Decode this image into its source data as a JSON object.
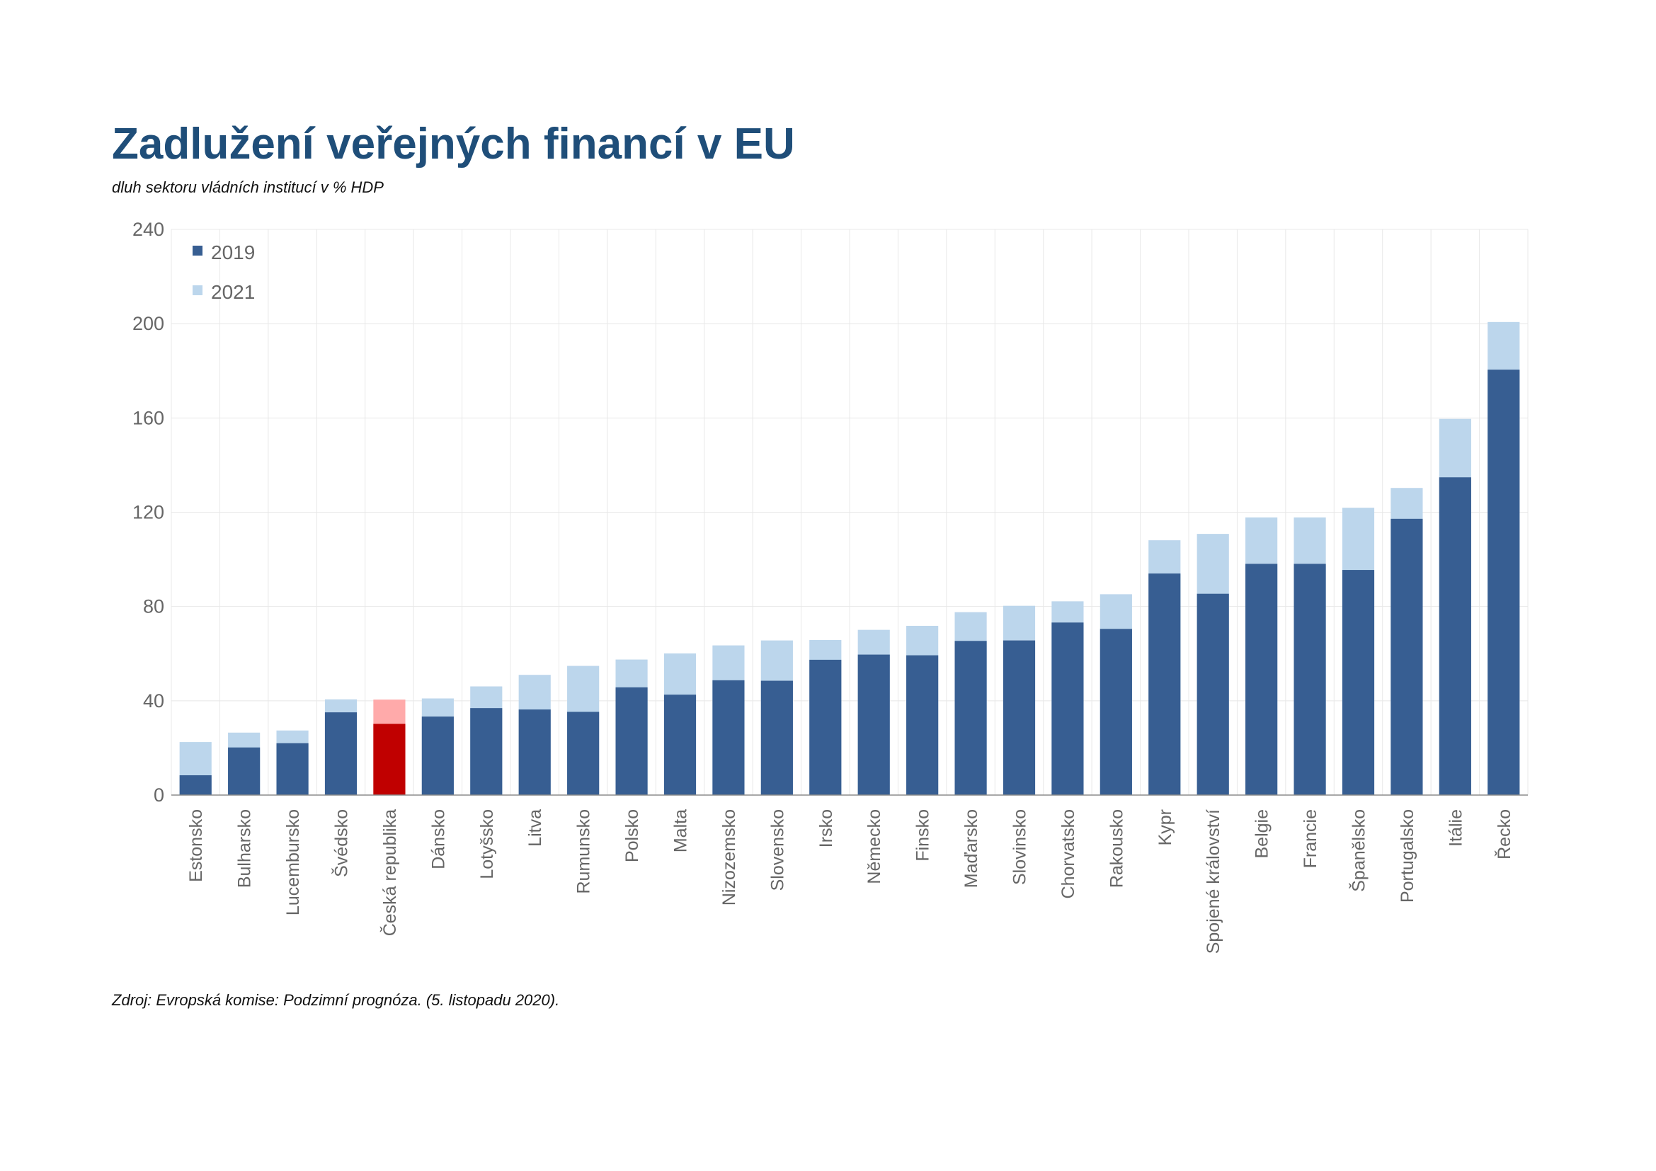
{
  "title": "Zadlužení veřejných financí v EU",
  "subtitle": "dluh sektoru vládních institucí v % HDP",
  "source": "Zdroj: Evropská komise: Podzimní prognóza. (5. listopadu 2020).",
  "colors": {
    "title": "#1f4e79",
    "series_2019": "#375e92",
    "series_2021": "#bcd6ec",
    "highlight_2019": "#c00000",
    "highlight_2021": "#ffaaaa",
    "grid": "#e8e8e8",
    "axis_text": "#666666"
  },
  "chart_data": {
    "type": "bar",
    "stacked_overlay": true,
    "categories": [
      "Estonsko",
      "Bulharsko",
      "Lucembursko",
      "Švédsko",
      "Česká republika",
      "Dánsko",
      "Lotyšsko",
      "Litva",
      "Rumunsko",
      "Polsko",
      "Malta",
      "Nizozemsko",
      "Slovensko",
      "Irsko",
      "Německo",
      "Finsko",
      "Maďarsko",
      "Slovinsko",
      "Chorvatsko",
      "Rakousko",
      "Kypr",
      "Spojené království",
      "Belgie",
      "Francie",
      "Španělsko",
      "Portugalsko",
      "Itálie",
      "Řecko"
    ],
    "highlight_category": "Česká republika",
    "series": [
      {
        "name": "2019",
        "values": [
          8.4,
          20.2,
          22.0,
          35.1,
          30.2,
          33.3,
          36.9,
          36.3,
          35.3,
          45.7,
          42.6,
          48.7,
          48.5,
          57.4,
          59.6,
          59.3,
          65.4,
          65.6,
          73.2,
          70.5,
          94.0,
          85.4,
          98.1,
          98.1,
          95.5,
          117.2,
          134.8,
          180.5
        ]
      },
      {
        "name": "2021",
        "values": [
          22.5,
          26.5,
          27.4,
          40.6,
          40.5,
          41.0,
          46.1,
          51.0,
          54.8,
          57.5,
          60.1,
          63.5,
          65.6,
          65.8,
          70.1,
          71.8,
          77.6,
          80.3,
          82.2,
          85.2,
          108.1,
          110.8,
          117.8,
          117.8,
          121.9,
          130.3,
          159.6,
          200.7
        ]
      }
    ],
    "legend": [
      "2019",
      "2021"
    ],
    "legend_position": "top-left",
    "ylim": [
      0,
      240
    ],
    "yticks": [
      "0",
      "40",
      "80",
      "120",
      "160",
      "200",
      "240"
    ],
    "grid": true,
    "xlabel": "",
    "ylabel": ""
  }
}
